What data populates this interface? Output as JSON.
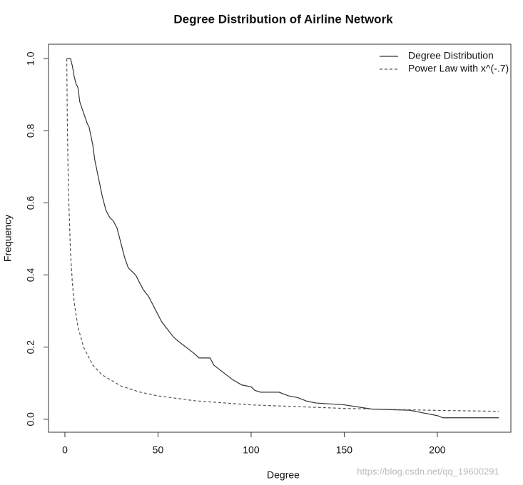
{
  "chart_data": {
    "type": "line",
    "title": "Degree Distribution of Airline Network",
    "x_label": "Degree",
    "y_label": "Frequency",
    "xlim": [
      -8.8,
      239.5
    ],
    "ylim": [
      -0.036,
      1.04
    ],
    "xticks": [
      0,
      50,
      100,
      150,
      200
    ],
    "yticks": [
      {
        "value": 0,
        "label": "0.0"
      },
      0.2,
      0.4,
      0.6,
      0.8,
      {
        "value": 1,
        "label": "1.0"
      }
    ],
    "legend": "top-right",
    "series": [
      {
        "name": "Degree Distribution",
        "color": "#333333",
        "linestyle": "solid",
        "x": [
          1,
          3,
          4,
          5,
          6,
          7,
          8,
          10,
          12,
          13,
          15,
          16,
          18,
          20,
          22,
          24,
          26,
          28,
          30,
          32,
          34,
          36,
          38,
          40,
          42,
          45,
          48,
          50,
          52,
          55,
          58,
          60,
          65,
          70,
          72,
          78,
          80,
          85,
          90,
          95,
          100,
          102,
          105,
          115,
          120,
          125,
          130,
          135,
          150,
          160,
          165,
          185,
          190,
          200,
          203,
          233
        ],
        "values": [
          1.0,
          1.0,
          0.98,
          0.95,
          0.93,
          0.92,
          0.88,
          0.85,
          0.82,
          0.81,
          0.76,
          0.72,
          0.67,
          0.62,
          0.58,
          0.56,
          0.55,
          0.53,
          0.49,
          0.45,
          0.42,
          0.41,
          0.4,
          0.38,
          0.36,
          0.34,
          0.31,
          0.29,
          0.27,
          0.25,
          0.23,
          0.22,
          0.2,
          0.18,
          0.17,
          0.17,
          0.15,
          0.13,
          0.11,
          0.095,
          0.09,
          0.08,
          0.075,
          0.075,
          0.065,
          0.06,
          0.05,
          0.045,
          0.04,
          0.032,
          0.028,
          0.025,
          0.02,
          0.01,
          0.004,
          0.004
        ]
      },
      {
        "name": "Power Law with x^(-.7)",
        "color": "#555555",
        "linestyle": "dashed",
        "x": [
          1,
          1.2,
          1.5,
          2,
          3,
          4,
          5,
          7,
          10,
          15,
          20,
          30,
          40,
          50,
          70,
          100,
          150,
          200,
          233
        ],
        "values": [
          1,
          0.88,
          0.753,
          0.616,
          0.463,
          0.379,
          0.324,
          0.256,
          0.2,
          0.15,
          0.123,
          0.0925,
          0.0756,
          0.0647,
          0.0511,
          0.0398,
          0.03,
          0.0245,
          0.022
        ]
      }
    ],
    "watermark": "https://blog.csdn.net/qq_19600291"
  }
}
